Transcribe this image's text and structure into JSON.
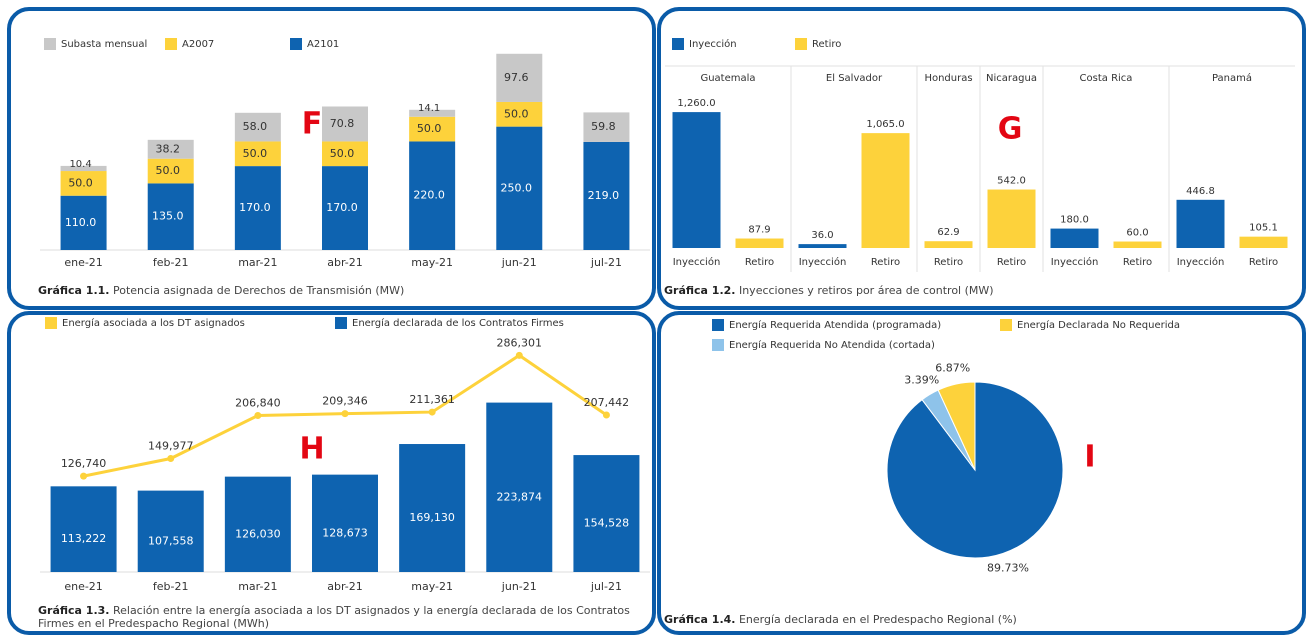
{
  "chart_data": [
    {
      "type": "stacked_bar",
      "annotation": "F",
      "caption_label": "Gráfica 1.1.",
      "caption": "Potencia asignada de Derechos de Transmisión (MW)",
      "categories": [
        "ene-21",
        "feb-21",
        "mar-21",
        "abr-21",
        "may-21",
        "jun-21",
        "jul-21"
      ],
      "ylim": [
        0,
        385
      ],
      "series": [
        {
          "name": "Subasta mensual",
          "color": "#c8c8c8",
          "values": [
            10.4,
            38.2,
            58.0,
            70.8,
            14.1,
            97.6,
            59.8
          ],
          "value_labels": [
            "10.4",
            "38.2",
            "58.0",
            "70.8",
            "14.1",
            "97.6",
            "59.8"
          ]
        },
        {
          "name": "A2007",
          "color": "#fdd23b",
          "values": [
            50.0,
            50.0,
            50.0,
            50.0,
            50.0,
            50.0,
            null
          ],
          "value_labels": [
            "50.0",
            "50.0",
            "50.0",
            "50.0",
            "50.0",
            "50.0",
            null
          ]
        },
        {
          "name": "A2101",
          "color": "#0e63b0",
          "values": [
            110.0,
            135.0,
            170.0,
            170.0,
            220.0,
            250.0,
            219.0
          ],
          "value_labels": [
            "110.0",
            "135.0",
            "170.0",
            "170.0",
            "220.0",
            "250.0",
            "219.0"
          ]
        }
      ]
    },
    {
      "type": "grouped_area_bar",
      "annotation": "G",
      "caption_label": "Gráfica 1.2.",
      "caption": "Inyecciones y retiros por área de control (MW)",
      "ylim": [
        0,
        1400
      ],
      "legend": [
        {
          "name": "Inyección",
          "color": "#0e63b0"
        },
        {
          "name": "Retiro",
          "color": "#fdd23b"
        }
      ],
      "areas": [
        {
          "name": "Guatemala",
          "categories": [
            "Inyección",
            "Retiro"
          ],
          "values": [
            1260.0,
            87.9
          ],
          "value_labels": [
            "1,260.0",
            "87.9"
          ]
        },
        {
          "name": "El Salvador",
          "categories": [
            "Inyección",
            "Retiro"
          ],
          "values": [
            36.0,
            1065.0
          ],
          "value_labels": [
            "36.0",
            "1,065.0"
          ]
        },
        {
          "name": "Honduras",
          "categories": [
            "Retiro"
          ],
          "values": [
            62.9
          ],
          "value_labels": [
            "62.9"
          ]
        },
        {
          "name": "Nicaragua",
          "categories": [
            "Retiro"
          ],
          "values": [
            542.0
          ],
          "value_labels": [
            "542.0"
          ]
        },
        {
          "name": "Costa Rica",
          "categories": [
            "Inyección",
            "Retiro"
          ],
          "values": [
            180.0,
            60.0
          ],
          "value_labels": [
            "180.0",
            "60.0"
          ]
        },
        {
          "name": "Panamá",
          "categories": [
            "Inyección",
            "Retiro"
          ],
          "values": [
            446.8,
            105.1
          ],
          "value_labels": [
            "446.8",
            "105.1"
          ]
        }
      ]
    },
    {
      "type": "bar_line",
      "annotation": "H",
      "caption_label": "Gráfica 1.3.",
      "caption": "Relación entre la energía asociada a los DT asignados y la energía declarada de los Contratos Firmes en el Predespacho Regional (MWh)",
      "categories": [
        "ene-21",
        "feb-21",
        "mar-21",
        "abr-21",
        "may-21",
        "jun-21",
        "jul-21"
      ],
      "ylim": [
        0,
        300000
      ],
      "series": [
        {
          "name": "Energía asociada a los DT asignados",
          "kind": "line",
          "color": "#fdd23b",
          "values": [
            126740,
            149977,
            206840,
            209346,
            211361,
            286301,
            207442
          ],
          "value_labels": [
            "126,740",
            "149,977",
            "206,840",
            "209,346",
            "211,361",
            "286,301",
            "207,442"
          ]
        },
        {
          "name": "Energía declarada de los Contratos Firmes",
          "kind": "bar",
          "color": "#0e63b0",
          "values": [
            113222,
            107558,
            126030,
            128673,
            169130,
            223874,
            154528
          ],
          "value_labels": [
            "113,222",
            "107,558",
            "126,030",
            "128,673",
            "169,130",
            "223,874",
            "154,528"
          ]
        }
      ]
    },
    {
      "type": "pie",
      "annotation": "I",
      "caption_label": "Gráfica 1.4.",
      "caption": "Energía declarada en el Predespacho Regional (%)",
      "categories": [
        "Energía Requerida Atendida (programada)",
        "Energía Requerida No Atendida (cortada)",
        "Energía Declarada No Requerida"
      ],
      "values": [
        89.73,
        3.39,
        6.87
      ],
      "value_labels": [
        "89.73%",
        "3.39%",
        "6.87%"
      ],
      "colors": [
        "#0e63b0",
        "#8ec3ea",
        "#fdd23b"
      ]
    }
  ]
}
